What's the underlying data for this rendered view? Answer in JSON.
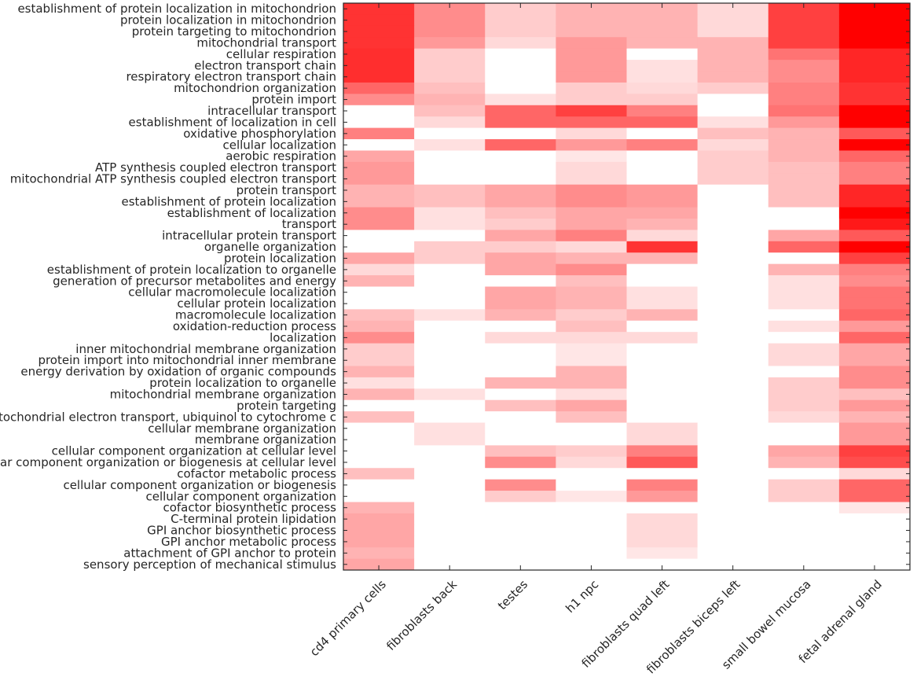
{
  "chart_data": {
    "type": "heatmap",
    "title": "",
    "colormap": {
      "low": "#ffffff",
      "high": "#ff0000"
    },
    "value_range": [
      0,
      1
    ],
    "columns": [
      "cd4 primary cells",
      "fibroblasts back",
      "testes",
      "h1 npc",
      "fibroblasts quad left",
      "fibroblasts biceps left",
      "small bowel mucosa",
      "fetal adrenal gland"
    ],
    "rows": [
      "establishment of protein localization in mitochondrion",
      "protein localization in mitochondrion",
      "protein targeting to mitochondrion",
      "mitochondrial transport",
      "cellular respiration",
      "electron transport chain",
      "respiratory electron transport chain",
      "mitochondrion organization",
      "protein import",
      "intracellular transport",
      "establishment of localization in cell",
      "oxidative phosphorylation",
      "cellular localization",
      "aerobic respiration",
      "ATP synthesis coupled electron transport",
      "mitochondrial ATP synthesis coupled electron transport",
      "protein transport",
      "establishment of protein localization",
      "establishment of localization",
      "transport",
      "intracellular protein transport",
      "organelle organization",
      "protein localization",
      "establishment of protein localization to organelle",
      "generation of precursor metabolites and energy",
      "cellular macromolecule localization",
      "cellular protein localization",
      "macromolecule localization",
      "oxidation-reduction process",
      "localization",
      "inner mitochondrial membrane organization",
      "protein import into mitochondrial inner membrane",
      "energy derivation by oxidation of organic compounds",
      "protein localization to organelle",
      "mitochondrial membrane organization",
      "protein targeting",
      "mitochondrial electron transport, ubiquinol to cytochrome c",
      "cellular membrane organization",
      "membrane organization",
      "cellular component organization at cellular level",
      "cellular component organization or biogenesis at cellular level",
      "cofactor metabolic process",
      "cellular component organization or biogenesis",
      "cellular component organization",
      "cofactor biosynthetic process",
      "C-terminal protein lipidation",
      "GPI anchor biosynthetic process",
      "GPI anchor metabolic process",
      "attachment of GPI anchor to protein",
      "sensory perception of mechanical stimulus"
    ],
    "values": [
      [
        0.8,
        0.45,
        0.2,
        0.3,
        0.3,
        0.15,
        0.75,
        1
      ],
      [
        0.8,
        0.45,
        0.2,
        0.3,
        0.3,
        0.15,
        0.75,
        1
      ],
      [
        0.8,
        0.45,
        0.2,
        0.3,
        0.3,
        0.15,
        0.75,
        1
      ],
      [
        0.8,
        0.4,
        0.15,
        0.4,
        0.3,
        0.3,
        0.75,
        1
      ],
      [
        0.82,
        0.2,
        0,
        0.4,
        0,
        0.3,
        0.55,
        0.85
      ],
      [
        0.82,
        0.2,
        0,
        0.4,
        0.12,
        0.3,
        0.45,
        0.85
      ],
      [
        0.82,
        0.2,
        0,
        0.4,
        0.12,
        0.3,
        0.45,
        0.85
      ],
      [
        0.6,
        0.25,
        0,
        0.2,
        0.15,
        0.2,
        0.5,
        0.8
      ],
      [
        0.45,
        0.3,
        0.12,
        0.2,
        0.2,
        0,
        0.5,
        0.8
      ],
      [
        0,
        0.25,
        0.6,
        0.75,
        0.5,
        0,
        0.55,
        1
      ],
      [
        0,
        0.15,
        0.6,
        0.6,
        0.6,
        0.12,
        0.4,
        1
      ],
      [
        0.5,
        0,
        0,
        0.15,
        0,
        0.25,
        0.3,
        0.65
      ],
      [
        0,
        0.12,
        0.6,
        0.4,
        0.5,
        0.15,
        0.3,
        1
      ],
      [
        0.35,
        0,
        0,
        0.1,
        0,
        0.2,
        0.3,
        0.6
      ],
      [
        0.4,
        0,
        0,
        0.15,
        0,
        0.2,
        0.25,
        0.5
      ],
      [
        0.4,
        0,
        0,
        0.15,
        0,
        0.2,
        0.25,
        0.5
      ],
      [
        0.3,
        0.25,
        0.35,
        0.45,
        0.4,
        0,
        0.25,
        0.85
      ],
      [
        0.3,
        0.25,
        0.35,
        0.45,
        0.4,
        0,
        0.25,
        0.85
      ],
      [
        0.45,
        0.12,
        0.25,
        0.35,
        0.35,
        0,
        0,
        1
      ],
      [
        0.45,
        0.12,
        0.2,
        0.35,
        0.3,
        0,
        0,
        0.9
      ],
      [
        0,
        0,
        0.35,
        0.5,
        0.15,
        0,
        0.35,
        0.65
      ],
      [
        0,
        0.2,
        0.2,
        0.15,
        0.8,
        0,
        0.6,
        1
      ],
      [
        0.35,
        0.2,
        0.35,
        0.3,
        0.3,
        0,
        0,
        0.75
      ],
      [
        0.15,
        0,
        0.35,
        0.45,
        0,
        0,
        0.3,
        0.5
      ],
      [
        0.3,
        0,
        0,
        0.25,
        0,
        0,
        0.12,
        0.45
      ],
      [
        0,
        0,
        0.35,
        0.3,
        0.12,
        0,
        0.12,
        0.55
      ],
      [
        0,
        0,
        0.35,
        0.3,
        0.12,
        0,
        0.12,
        0.55
      ],
      [
        0.25,
        0.12,
        0.3,
        0.2,
        0.3,
        0,
        0,
        0.6
      ],
      [
        0.3,
        0,
        0,
        0.25,
        0,
        0,
        0.12,
        0.4
      ],
      [
        0.45,
        0,
        0.15,
        0.15,
        0.15,
        0,
        0,
        0.6
      ],
      [
        0.2,
        0,
        0,
        0.1,
        0,
        0,
        0.15,
        0.35
      ],
      [
        0.2,
        0,
        0,
        0.1,
        0,
        0,
        0.15,
        0.35
      ],
      [
        0.3,
        0,
        0,
        0.3,
        0,
        0,
        0,
        0.45
      ],
      [
        0.12,
        0,
        0.3,
        0.3,
        0,
        0,
        0.2,
        0.45
      ],
      [
        0.3,
        0.12,
        0,
        0.12,
        0,
        0,
        0.2,
        0.25
      ],
      [
        0,
        0,
        0.25,
        0.35,
        0,
        0,
        0.2,
        0.4
      ],
      [
        0.25,
        0,
        0,
        0.25,
        0,
        0,
        0.15,
        0.3
      ],
      [
        0,
        0.12,
        0,
        0,
        0.15,
        0,
        0,
        0.4
      ],
      [
        0,
        0.12,
        0,
        0,
        0.15,
        0,
        0,
        0.4
      ],
      [
        0,
        0,
        0.25,
        0.2,
        0.5,
        0,
        0.35,
        0.75
      ],
      [
        0,
        0,
        0.45,
        0.15,
        0.65,
        0,
        0.3,
        0.7
      ],
      [
        0.25,
        0,
        0,
        0,
        0,
        0,
        0,
        0.15
      ],
      [
        0,
        0,
        0.45,
        0,
        0.5,
        0,
        0.2,
        0.6
      ],
      [
        0,
        0,
        0.2,
        0.1,
        0.4,
        0,
        0.2,
        0.6
      ],
      [
        0.3,
        0,
        0,
        0,
        0,
        0,
        0,
        0.1
      ],
      [
        0.35,
        0,
        0,
        0,
        0.15,
        0,
        0,
        0
      ],
      [
        0.35,
        0,
        0,
        0,
        0.15,
        0,
        0,
        0
      ],
      [
        0.35,
        0,
        0,
        0,
        0.15,
        0,
        0,
        0
      ],
      [
        0.3,
        0,
        0,
        0,
        0.1,
        0,
        0,
        0
      ],
      [
        0.35,
        0,
        0,
        0,
        0,
        0,
        0,
        0
      ]
    ],
    "xlabel": "",
    "ylabel": "",
    "grid": false
  }
}
